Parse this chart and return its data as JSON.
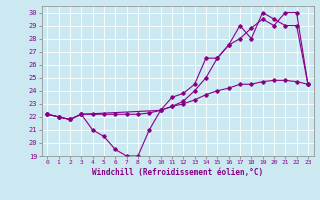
{
  "xlabel": "Windchill (Refroidissement éolien,°C)",
  "background_color": "#cce8f0",
  "line_color": "#880088",
  "xlim": [
    -0.5,
    23.5
  ],
  "ylim": [
    19,
    30.5
  ],
  "yticks": [
    19,
    20,
    21,
    22,
    23,
    24,
    25,
    26,
    27,
    28,
    29,
    30
  ],
  "xticks": [
    0,
    1,
    2,
    3,
    4,
    5,
    6,
    7,
    8,
    9,
    10,
    11,
    12,
    13,
    14,
    15,
    16,
    17,
    18,
    19,
    20,
    21,
    22,
    23
  ],
  "line1_x": [
    0,
    1,
    2,
    3,
    4,
    5,
    6,
    7,
    8,
    9,
    10,
    11,
    12,
    13,
    14,
    15,
    16,
    17,
    18,
    19,
    20,
    21,
    22,
    23
  ],
  "line1_y": [
    22.2,
    22.0,
    21.8,
    22.2,
    21.0,
    20.5,
    19.5,
    19.0,
    19.0,
    21.0,
    22.5,
    23.5,
    23.8,
    24.5,
    26.5,
    26.5,
    27.5,
    29.0,
    28.0,
    30.0,
    29.5,
    29.0,
    29.0,
    24.5
  ],
  "line2_x": [
    0,
    1,
    2,
    3,
    4,
    5,
    6,
    7,
    8,
    9,
    10,
    11,
    12,
    13,
    14,
    15,
    16,
    17,
    18,
    19,
    20,
    21,
    22,
    23
  ],
  "line2_y": [
    22.2,
    22.0,
    21.8,
    22.2,
    22.2,
    22.2,
    22.2,
    22.2,
    22.2,
    22.3,
    22.5,
    22.8,
    23.0,
    23.3,
    23.7,
    24.0,
    24.2,
    24.5,
    24.5,
    24.7,
    24.8,
    24.8,
    24.7,
    24.5
  ],
  "line3_x": [
    0,
    1,
    2,
    3,
    10,
    11,
    12,
    13,
    14,
    15,
    16,
    17,
    18,
    19,
    20,
    21,
    22,
    23
  ],
  "line3_y": [
    22.2,
    22.0,
    21.8,
    22.2,
    22.5,
    22.8,
    23.2,
    24.0,
    25.0,
    26.5,
    27.5,
    28.0,
    28.8,
    29.5,
    29.0,
    30.0,
    30.0,
    24.5
  ]
}
